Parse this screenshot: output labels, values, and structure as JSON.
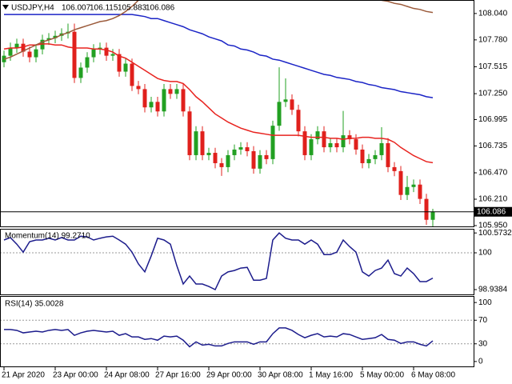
{
  "chart_data": [
    {
      "type": "candlestick",
      "title": "USDJPY,H4",
      "open": [
        107.56,
        107.624,
        107.703,
        107.742,
        107.664,
        107.609,
        107.687,
        107.781,
        107.797,
        107.82,
        107.844,
        107.86,
        107.405,
        107.507,
        107.609,
        107.687,
        107.703,
        107.624,
        107.64,
        107.467,
        107.546,
        107.326,
        107.295,
        107.115,
        107.169,
        107.075,
        107.295,
        107.248,
        107.295,
        107.075,
        106.644,
        106.879,
        106.644,
        106.667,
        106.565,
        106.526,
        106.644,
        106.699,
        106.722,
        106.683,
        106.511,
        106.644,
        106.605,
        106.934,
        107.169,
        107.193,
        107.091,
        106.879,
        106.644,
        106.801,
        106.879,
        106.722,
        106.762,
        106.722,
        106.84,
        106.801,
        106.699,
        106.565,
        106.605,
        106.644,
        106.762,
        106.526,
        106.487,
        106.252,
        106.33,
        106.354,
        106.213,
        106.007
      ],
      "high": [
        107.674,
        107.753,
        107.792,
        107.792,
        107.714,
        107.737,
        107.831,
        107.847,
        107.87,
        107.894,
        107.94,
        107.94,
        107.557,
        107.659,
        107.737,
        107.753,
        107.753,
        107.69,
        107.69,
        107.596,
        107.596,
        107.376,
        107.345,
        107.219,
        107.219,
        107.345,
        107.345,
        107.345,
        107.345,
        107.125,
        106.929,
        106.929,
        106.717,
        106.717,
        106.615,
        106.694,
        106.749,
        106.772,
        106.772,
        106.733,
        106.694,
        106.694,
        106.984,
        107.51,
        107.4,
        107.243,
        107.141,
        106.929,
        106.851,
        106.929,
        106.929,
        106.812,
        106.812,
        107.08,
        106.89,
        106.851,
        106.749,
        106.655,
        106.694,
        106.92,
        106.812,
        106.576,
        106.537,
        106.44,
        106.404,
        106.404,
        106.263,
        106.115
      ],
      "low": [
        107.51,
        107.574,
        107.653,
        107.614,
        107.559,
        107.559,
        107.637,
        107.731,
        107.747,
        107.77,
        107.794,
        107.355,
        107.355,
        107.457,
        107.559,
        107.637,
        107.574,
        107.574,
        107.417,
        107.417,
        107.276,
        107.245,
        107.065,
        107.065,
        107.025,
        107.025,
        107.198,
        107.198,
        107.025,
        106.594,
        106.594,
        106.594,
        106.594,
        106.515,
        106.44,
        106.476,
        106.594,
        106.649,
        106.633,
        106.461,
        106.461,
        106.555,
        106.555,
        106.884,
        107.119,
        107.041,
        106.829,
        106.594,
        106.594,
        106.751,
        106.672,
        106.672,
        106.672,
        106.672,
        106.751,
        106.649,
        106.515,
        106.515,
        106.555,
        106.594,
        106.476,
        106.437,
        106.202,
        106.202,
        106.28,
        106.163,
        105.957,
        105.883
      ],
      "close": [
        107.624,
        107.703,
        107.742,
        107.664,
        107.609,
        107.687,
        107.781,
        107.797,
        107.82,
        107.844,
        107.86,
        107.405,
        107.507,
        107.609,
        107.687,
        107.703,
        107.624,
        107.64,
        107.467,
        107.546,
        107.326,
        107.295,
        107.115,
        107.169,
        107.075,
        107.295,
        107.248,
        107.295,
        107.075,
        106.644,
        106.879,
        106.644,
        106.667,
        106.565,
        106.526,
        106.644,
        106.699,
        106.722,
        106.683,
        106.511,
        106.644,
        106.605,
        106.934,
        107.169,
        107.193,
        107.091,
        106.879,
        106.644,
        106.801,
        106.879,
        106.722,
        106.762,
        106.722,
        106.84,
        106.801,
        106.699,
        106.565,
        106.605,
        106.644,
        106.762,
        106.526,
        106.487,
        106.252,
        106.33,
        106.354,
        106.213,
        106.007,
        106.086
      ],
      "up_color": "#22a022",
      "down_color": "#e0201c",
      "series": [
        {
          "color": "#e8231f",
          "values": [
            107.69,
            107.7,
            107.7,
            107.71,
            107.73,
            107.73,
            107.74,
            107.74,
            107.73,
            107.73,
            107.71,
            107.7,
            107.7,
            107.7,
            107.69,
            107.69,
            107.68,
            107.66,
            107.62,
            107.6,
            107.56,
            107.52,
            107.48,
            107.44,
            107.4,
            107.38,
            107.37,
            107.37,
            107.35,
            107.29,
            107.22,
            107.17,
            107.11,
            107.05,
            107.01,
            106.97,
            106.94,
            106.91,
            106.89,
            106.87,
            106.86,
            106.85,
            106.84,
            106.84,
            106.84,
            106.84,
            106.84,
            106.83,
            106.82,
            106.82,
            106.82,
            106.81,
            106.81,
            106.8,
            106.81,
            106.81,
            106.82,
            106.82,
            106.81,
            106.81,
            106.8,
            106.77,
            106.72,
            106.68,
            106.64,
            106.61,
            106.58,
            106.57
          ]
        },
        {
          "color": "#1b24c6",
          "values": [
            108.03,
            108.03,
            108.03,
            108.03,
            108.03,
            108.03,
            108.03,
            108.03,
            108.03,
            108.03,
            108.03,
            108.03,
            108.03,
            108.03,
            108.03,
            108.03,
            108.03,
            108.03,
            108.03,
            108.03,
            108.03,
            108.02,
            108.01,
            107.99,
            107.99,
            107.97,
            107.95,
            107.93,
            107.91,
            107.88,
            107.86,
            107.84,
            107.81,
            107.79,
            107.77,
            107.73,
            107.72,
            107.69,
            107.68,
            107.66,
            107.63,
            107.62,
            107.59,
            107.58,
            107.56,
            107.54,
            107.52,
            107.5,
            107.48,
            107.46,
            107.44,
            107.43,
            107.41,
            107.4,
            107.39,
            107.37,
            107.36,
            107.34,
            107.33,
            107.31,
            107.3,
            107.29,
            107.27,
            107.26,
            107.25,
            107.24,
            107.22,
            107.21
          ]
        },
        {
          "color": "#9b5a3a",
          "values": [
            107.59,
            107.61,
            107.64,
            107.67,
            107.7,
            107.73,
            107.76,
            107.78,
            107.8,
            107.83,
            107.85,
            107.88,
            107.9,
            107.92,
            107.94,
            107.96,
            107.97,
            107.99,
            108.02,
            108.06,
            108.11,
            108.17,
            null,
            null,
            null,
            null,
            null,
            null,
            null,
            null,
            null,
            null,
            null,
            null,
            null,
            null,
            null,
            null,
            null,
            null,
            null,
            null,
            null,
            null,
            null,
            null,
            null,
            null,
            null,
            null,
            null,
            null,
            null,
            null,
            null,
            null,
            null,
            null,
            108.19,
            108.17,
            108.16,
            108.14,
            108.13,
            108.11,
            108.09,
            108.08,
            108.06,
            108.05
          ]
        }
      ],
      "ylim": [
        105.942,
        108.173
      ],
      "yticks": [
        {
          "value": 108.04,
          "label": "108.040"
        },
        {
          "value": 107.78,
          "label": "107.780"
        },
        107.515,
        {
          "value": 107.25,
          "label": "107.250"
        },
        106.995,
        106.735,
        {
          "value": 106.47,
          "label": "106.470"
        },
        {
          "value": 106.21,
          "label": "106.210"
        },
        {
          "value": 105.95,
          "label": "105.950"
        }
      ],
      "xticks": [
        {
          "value": 0,
          "label": "21 Apr 2020"
        },
        {
          "value": 8,
          "label": "23 Apr 00:00"
        },
        {
          "value": 16,
          "label": "24 Apr 08:00"
        },
        {
          "value": 24,
          "label": "27 Apr 16:00"
        },
        {
          "value": 32,
          "label": "29 Apr 00:00"
        },
        {
          "value": 40,
          "label": "30 Apr 08:00"
        },
        {
          "value": 48,
          "label": "1 May 16:00"
        },
        {
          "value": 56,
          "label": "5 May 00:00"
        },
        {
          "value": 64,
          "label": "6 May 08:00"
        }
      ],
      "last_price_line": true
    },
    {
      "type": "line",
      "title": "Momentum(14) 99.2710",
      "color": "#1c1c8c",
      "values": [
        100.37,
        100.44,
        100.25,
        100.02,
        100.32,
        100.37,
        100.37,
        100.42,
        100.37,
        100.44,
        100.37,
        100.37,
        100.48,
        100.46,
        100.37,
        100.42,
        100.46,
        100.48,
        100.37,
        100.25,
        100.02,
        99.68,
        99.45,
        99.91,
        100.42,
        100.37,
        100.25,
        99.63,
        99.1,
        99.33,
        99.1,
        99.1,
        99.03,
        98.9384,
        99.33,
        99.45,
        99.49,
        99.56,
        99.58,
        99.21,
        99.21,
        99.26,
        100.37,
        100.5732,
        100.42,
        100.37,
        100.37,
        100.25,
        100.37,
        100.25,
        99.95,
        99.95,
        100.02,
        100.37,
        100.18,
        100.02,
        99.45,
        99.33,
        99.49,
        99.56,
        99.79,
        99.4,
        99.33,
        99.56,
        99.4,
        99.17,
        99.17,
        99.271
      ],
      "ylim": [
        98.8,
        100.67
      ],
      "yticks": [
        100.5732,
        100,
        98.9384
      ],
      "levels": [
        100
      ]
    },
    {
      "type": "line",
      "title": "RSI(14) 35.0028",
      "color": "#1c1c8c",
      "values": [
        54.2,
        54.2,
        52.8,
        48.6,
        50.0,
        51.4,
        50.0,
        52.8,
        54.2,
        52.8,
        54.2,
        44.4,
        48.6,
        51.4,
        52.8,
        51.4,
        50.0,
        51.4,
        44.4,
        47.2,
        41.7,
        41.7,
        37.5,
        38.9,
        36.1,
        43.1,
        41.7,
        43.1,
        36.1,
        25.0,
        33.3,
        27.8,
        29.2,
        26.4,
        26.4,
        30.6,
        33.3,
        33.3,
        33.3,
        29.2,
        33.3,
        33.3,
        47.2,
        56.9,
        56.9,
        52.8,
        45.8,
        40.3,
        44.4,
        47.2,
        41.7,
        43.1,
        41.7,
        47.2,
        45.8,
        41.7,
        37.5,
        38.9,
        40.3,
        45.8,
        37.5,
        36.1,
        30.6,
        33.3,
        33.3,
        29.2,
        26.4,
        35.0028
      ],
      "ylim": [
        -8.3,
        109.7
      ],
      "yticks": [
        100,
        70,
        30,
        0
      ],
      "levels": [
        70,
        30
      ]
    }
  ]
}
